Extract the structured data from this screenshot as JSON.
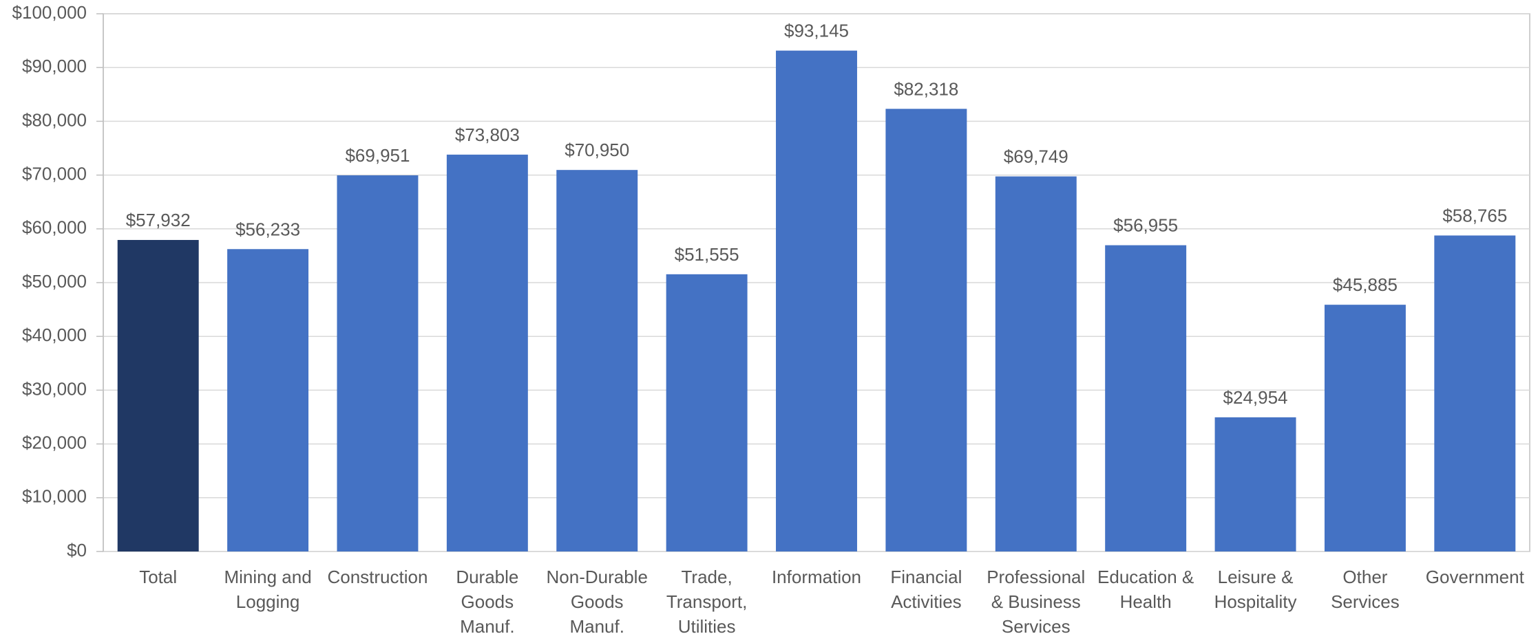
{
  "chart_data": {
    "type": "bar",
    "categories": [
      "Total",
      "Mining and Logging",
      "Construction",
      "Durable Goods Manuf.",
      "Non-Durable Goods Manuf.",
      "Trade, Transport, Utilities",
      "Information",
      "Financial Activities",
      "Professional & Business Services",
      "Education & Health",
      "Leisure & Hospitality",
      "Other Services",
      "Government"
    ],
    "values": [
      57932,
      56233,
      69951,
      73803,
      70950,
      51555,
      93145,
      82318,
      69749,
      56955,
      24954,
      45885,
      58765
    ],
    "value_labels": [
      "$57,932",
      "$56,233",
      "$69,951",
      "$73,803",
      "$70,950",
      "$51,555",
      "$93,145",
      "$82,318",
      "$69,749",
      "$56,955",
      "$24,954",
      "$45,885",
      "$58,765"
    ],
    "colors": [
      "#203864",
      "#4472c4",
      "#4472c4",
      "#4472c4",
      "#4472c4",
      "#4472c4",
      "#4472c4",
      "#4472c4",
      "#4472c4",
      "#4472c4",
      "#4472c4",
      "#4472c4",
      "#4472c4"
    ],
    "ylim": [
      0,
      100000
    ],
    "yticks": [
      {
        "value": 0,
        "label": "$0"
      },
      {
        "value": 10000,
        "label": "$10,000"
      },
      {
        "value": 20000,
        "label": "$20,000"
      },
      {
        "value": 30000,
        "label": "$30,000"
      },
      {
        "value": 40000,
        "label": "$40,000"
      },
      {
        "value": 50000,
        "label": "$50,000"
      },
      {
        "value": 60000,
        "label": "$60,000"
      },
      {
        "value": 70000,
        "label": "$70,000"
      },
      {
        "value": 80000,
        "label": "$80,000"
      },
      {
        "value": 90000,
        "label": "$90,000"
      },
      {
        "value": 100000,
        "label": "$100,000"
      }
    ],
    "grid": true
  }
}
